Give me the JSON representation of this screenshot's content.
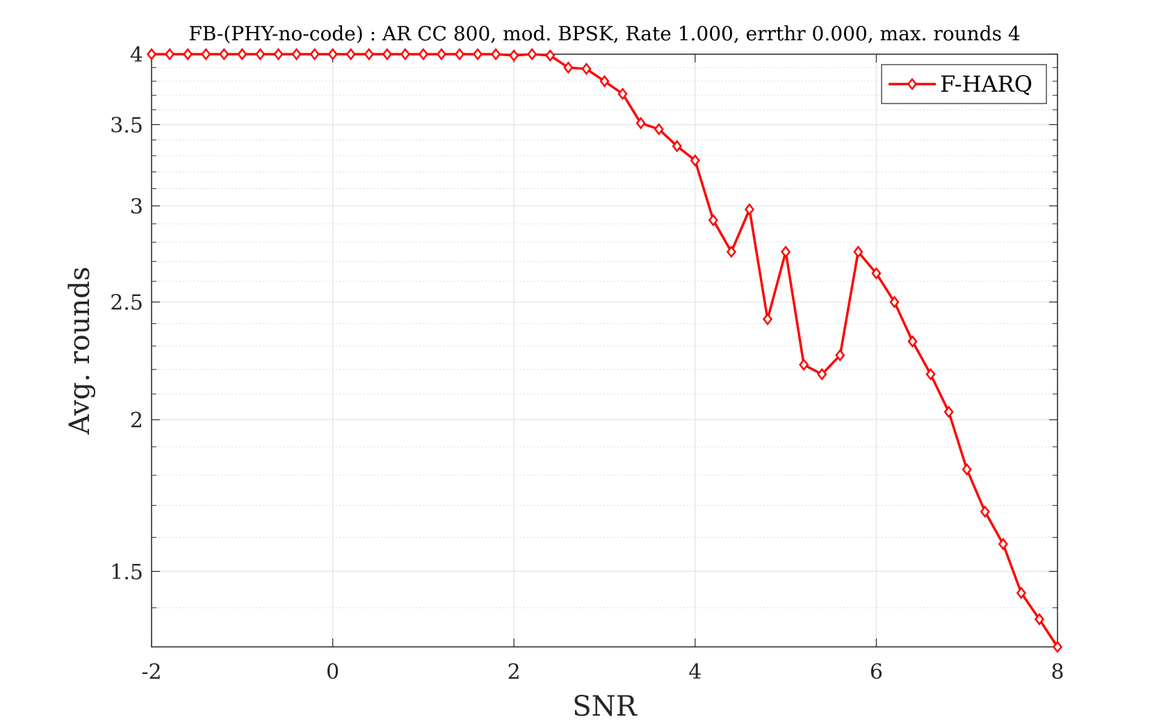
{
  "chart_data": {
    "type": "line",
    "title": "FB-(PHY-no-code) : AR CC 800, mod. BPSK, Rate 1.000, errthr 0.000, max. rounds 4",
    "xlabel": "SNR",
    "ylabel": "Avg. rounds",
    "xlim": [
      -2,
      8
    ],
    "ylim": [
      1.3,
      4
    ],
    "yscale": "log",
    "xticks": [
      -2,
      0,
      2,
      4,
      6,
      8
    ],
    "xtick_labels": [
      "-2",
      "0",
      "2",
      "4",
      "6",
      "8"
    ],
    "yticks": [
      1.5,
      2,
      2.5,
      3,
      3.5,
      4
    ],
    "ytick_labels": [
      "1.5",
      "2",
      "2.5",
      "3",
      "3.5",
      "4"
    ],
    "grid": true,
    "legend_position": "top-right",
    "series": [
      {
        "name": "F-HARQ",
        "color": "#ff0000",
        "marker": "diamond",
        "x": [
          -2,
          -1.8,
          -1.6,
          -1.4,
          -1.2,
          -1,
          -0.8,
          -0.6,
          -0.4,
          -0.2,
          0,
          0.2,
          0.4,
          0.6,
          0.8,
          1,
          1.2,
          1.4,
          1.6,
          1.8,
          2,
          2.2,
          2.4,
          2.6,
          2.8,
          3,
          3.2,
          3.4,
          3.6,
          3.8,
          4,
          4.2,
          4.4,
          4.6,
          4.8,
          5,
          5.2,
          5.4,
          5.6,
          5.8,
          6,
          6.2,
          6.4,
          6.6,
          6.8,
          7,
          7.2,
          7.4,
          7.6,
          7.8,
          8
        ],
        "y": [
          4,
          4,
          4,
          4,
          4,
          4,
          4,
          4,
          4,
          4,
          4,
          4,
          4,
          4,
          4,
          4,
          4,
          4,
          4,
          4,
          3.99,
          4,
          3.99,
          3.9,
          3.89,
          3.8,
          3.71,
          3.51,
          3.47,
          3.36,
          3.27,
          2.92,
          2.75,
          2.98,
          2.42,
          2.75,
          2.22,
          2.18,
          2.26,
          2.75,
          2.64,
          2.5,
          2.32,
          2.18,
          2.03,
          1.82,
          1.68,
          1.58,
          1.44,
          1.37,
          1.3
        ]
      }
    ]
  }
}
